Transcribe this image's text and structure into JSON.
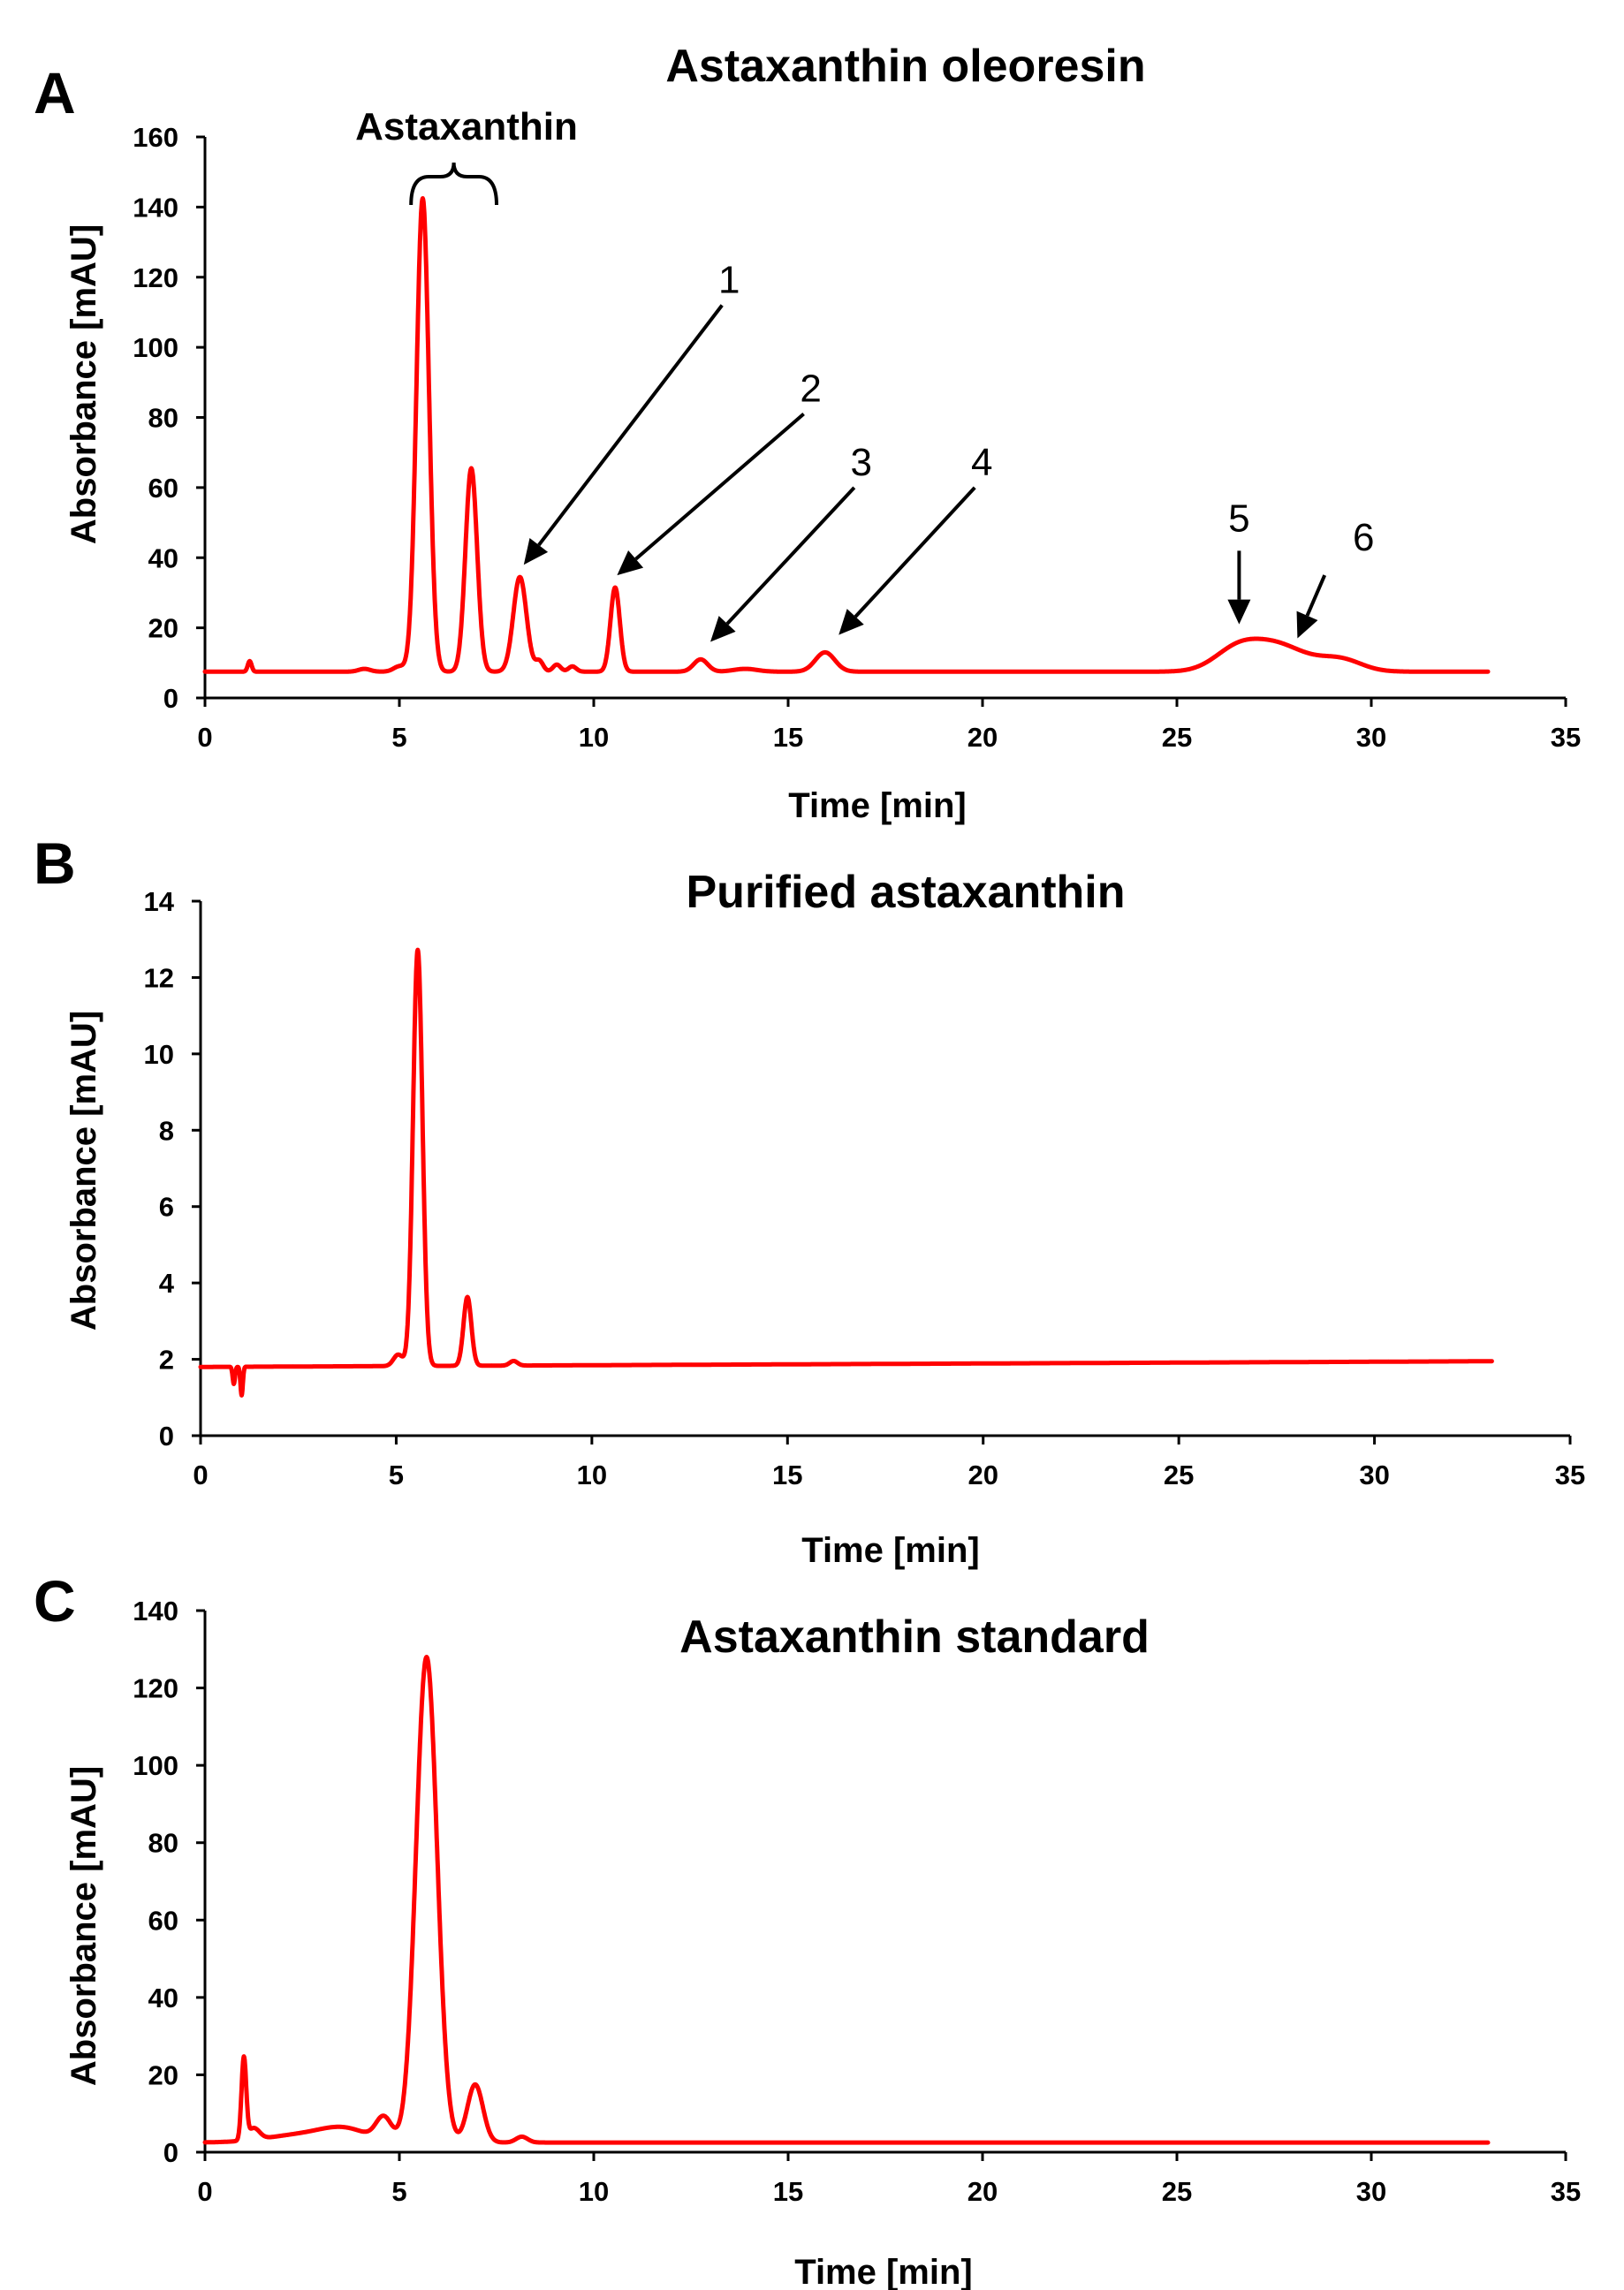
{
  "figure": {
    "panels": [
      "A",
      "B",
      "C"
    ]
  },
  "chart_data": [
    {
      "panel": "A",
      "type": "line",
      "title": "Astaxanthin oleoresin",
      "xlabel": "Time [min]",
      "ylabel": "Absorbance  [mAU]",
      "xlim": [
        0,
        35
      ],
      "ylim": [
        0,
        160
      ],
      "xticks": [
        0,
        5,
        10,
        15,
        20,
        25,
        30,
        35
      ],
      "yticks": [
        0,
        20,
        40,
        60,
        80,
        100,
        120,
        140,
        160
      ],
      "series": [
        {
          "name": "Astaxanthin oleoresin",
          "color": "#ff0000",
          "baseline": 7.5,
          "end": 33,
          "peaks": [
            {
              "t": 1.15,
              "h": 3,
              "w": 0.05
            },
            {
              "t": 4.1,
              "h": 0.8,
              "w": 0.15
            },
            {
              "t": 5.0,
              "h": 1.5,
              "w": 0.15
            },
            {
              "t": 5.6,
              "h": 135,
              "w": 0.16
            },
            {
              "t": 6.85,
              "h": 58,
              "w": 0.15
            },
            {
              "t": 8.1,
              "h": 27,
              "w": 0.17
            },
            {
              "t": 8.6,
              "h": 3,
              "w": 0.1
            },
            {
              "t": 9.05,
              "h": 2,
              "w": 0.1
            },
            {
              "t": 9.45,
              "h": 1.5,
              "w": 0.1
            },
            {
              "t": 10.55,
              "h": 24,
              "w": 0.12
            },
            {
              "t": 12.75,
              "h": 3.5,
              "w": 0.18
            },
            {
              "t": 13.9,
              "h": 0.8,
              "w": 0.3
            },
            {
              "t": 15.95,
              "h": 5.5,
              "w": 0.25
            },
            {
              "t": 26.6,
              "h": 7,
              "w": 0.6
            },
            {
              "t": 27.6,
              "h": 6,
              "w": 0.6
            },
            {
              "t": 28.7,
              "h": 2.5,
              "w": 0.7
            },
            {
              "t": 29.3,
              "h": 2,
              "w": 0.5
            }
          ]
        }
      ],
      "group_label": {
        "text": "Astaxanthin",
        "from": 5.3,
        "to": 7.5
      },
      "annotations": [
        {
          "label": "1",
          "tip": [
            8.2,
            38
          ],
          "tail": [
            13.3,
            112
          ]
        },
        {
          "label": "2",
          "tip": [
            10.6,
            35
          ],
          "tail": [
            15.4,
            81
          ]
        },
        {
          "label": "3",
          "tip": [
            13.0,
            16
          ],
          "tail": [
            16.7,
            60
          ]
        },
        {
          "label": "4",
          "tip": [
            16.3,
            18
          ],
          "tail": [
            19.8,
            60
          ]
        },
        {
          "label": "5",
          "tip": [
            26.6,
            21
          ],
          "tail": [
            26.6,
            42
          ]
        },
        {
          "label": "6",
          "tip": [
            28.1,
            17
          ],
          "tail": [
            28.8,
            35
          ]
        }
      ]
    },
    {
      "panel": "B",
      "type": "line",
      "title": "Purified astaxanthin",
      "xlabel": "Time [min]",
      "ylabel": "Absorbance  [mAU]",
      "xlim": [
        0,
        35
      ],
      "ylim": [
        0,
        14
      ],
      "xticks": [
        0,
        5,
        10,
        15,
        20,
        25,
        30,
        35
      ],
      "yticks": [
        0,
        2,
        4,
        6,
        8,
        10,
        12,
        14
      ],
      "series": [
        {
          "name": "Purified astaxanthin",
          "color": "#ff0000",
          "baseline": 1.8,
          "baseline_end": 1.95,
          "end": 33,
          "peaks": [
            {
              "t": 0.85,
              "h": -0.45,
              "w": 0.03
            },
            {
              "t": 1.05,
              "h": -0.75,
              "w": 0.03
            },
            {
              "t": 5.05,
              "h": 0.3,
              "w": 0.12
            },
            {
              "t": 5.55,
              "h": 10.9,
              "w": 0.12
            },
            {
              "t": 6.82,
              "h": 1.8,
              "w": 0.1
            },
            {
              "t": 8.0,
              "h": 0.12,
              "w": 0.1
            }
          ]
        }
      ]
    },
    {
      "panel": "C",
      "type": "line",
      "title": "Astaxanthin standard",
      "xlabel": "Time [min]",
      "ylabel": "Absorbance  [mAU]",
      "xlim": [
        0,
        35
      ],
      "ylim": [
        0,
        140
      ],
      "xticks": [
        0,
        5,
        10,
        15,
        20,
        25,
        30,
        35
      ],
      "yticks": [
        0,
        20,
        40,
        60,
        80,
        100,
        120,
        140
      ],
      "series": [
        {
          "name": "Astaxanthin standard",
          "color": "#ff0000",
          "baseline": 2.5,
          "end": 33,
          "peaks": [
            {
              "t": 1.0,
              "h": 21,
              "w": 0.06
            },
            {
              "t": 1.25,
              "h": 3,
              "w": 0.15
            },
            {
              "t": 2.5,
              "h": 2,
              "w": 0.9
            },
            {
              "t": 3.6,
              "h": 3,
              "w": 0.6
            },
            {
              "t": 4.6,
              "h": 6,
              "w": 0.2
            },
            {
              "t": 5.7,
              "h": 125.5,
              "w": 0.27
            },
            {
              "t": 6.95,
              "h": 15,
              "w": 0.2
            },
            {
              "t": 8.15,
              "h": 1.5,
              "w": 0.15
            }
          ]
        }
      ]
    }
  ]
}
